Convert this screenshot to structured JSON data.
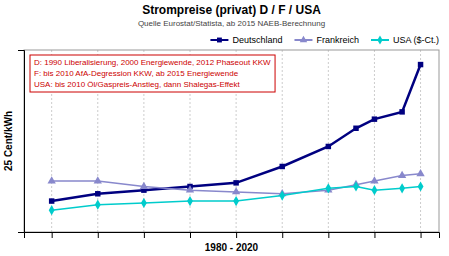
{
  "chart_data": {
    "type": "line",
    "title": "Strompreise (privat) D / F / USA",
    "subtitle": "Quelle Eurostat/Statista, ab 2015 NAEB-Berechnung",
    "xlabel": "1980 - 2020",
    "ylabel": "25 Cent/kWh",
    "annotation": "D: 1990 Liberalisierung, 2000 Energiewende, 2012 Phaseout KKW\nF: bis 2010 AfA-Degression KKW, ab 2015 Energiewende\nUSA: bis 2010 Öl/Gaspreis-Anstieg, dann Shalegas-Effekt",
    "x": [
      1980,
      1985,
      1990,
      1995,
      2000,
      2005,
      2010,
      2013,
      2015,
      2018,
      2020
    ],
    "series": [
      {
        "name": "Deutschland",
        "color": "#000080",
        "marker": "square",
        "values": [
          8.5,
          10.5,
          11.5,
          12.5,
          13.5,
          18.0,
          23.5,
          28.5,
          31.0,
          33.0,
          46.0
        ]
      },
      {
        "name": "Frankreich",
        "color": "#8888cc",
        "marker": "triangle",
        "values": [
          14.0,
          14.0,
          12.5,
          11.5,
          11.0,
          10.5,
          11.5,
          13.0,
          14.0,
          15.5,
          16.0
        ]
      },
      {
        "name": "USA ($-Ct.)",
        "color": "#00cccc",
        "marker": "diamond",
        "values": [
          6.0,
          7.5,
          8.0,
          8.5,
          8.5,
          10.0,
          12.0,
          12.5,
          11.5,
          12.0,
          12.5
        ]
      }
    ],
    "xlim": [
      1977,
      2022
    ],
    "ylim": [
      0,
      50
    ],
    "xticks": [
      1980,
      1985,
      1990,
      1995,
      2000,
      2005,
      2010,
      2015,
      2020
    ],
    "grid": "x",
    "tick_labels": false,
    "legend": "upper right"
  }
}
